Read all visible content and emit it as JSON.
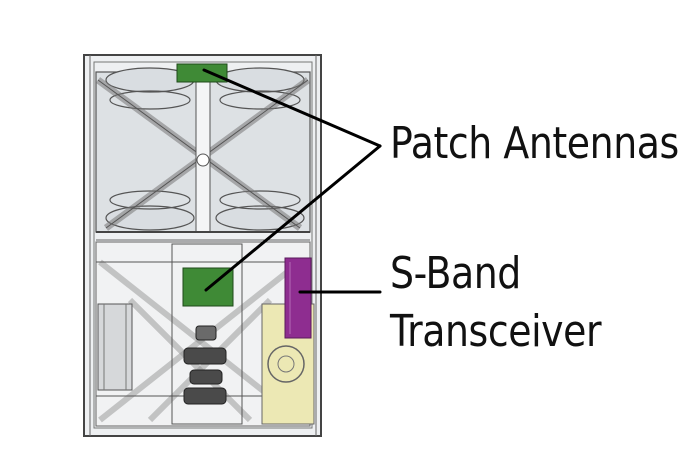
{
  "labels": {
    "patch_antennas": "Patch Antennas",
    "sband_line1": "S-Band",
    "sband_line2": "Transceiver"
  },
  "colors": {
    "antenna_green": "#3f8a36",
    "transceiver_purple": "#8e2d90",
    "battery_yellow": "#ece8b4",
    "leader_line": "#000000",
    "frame": "#555555"
  }
}
